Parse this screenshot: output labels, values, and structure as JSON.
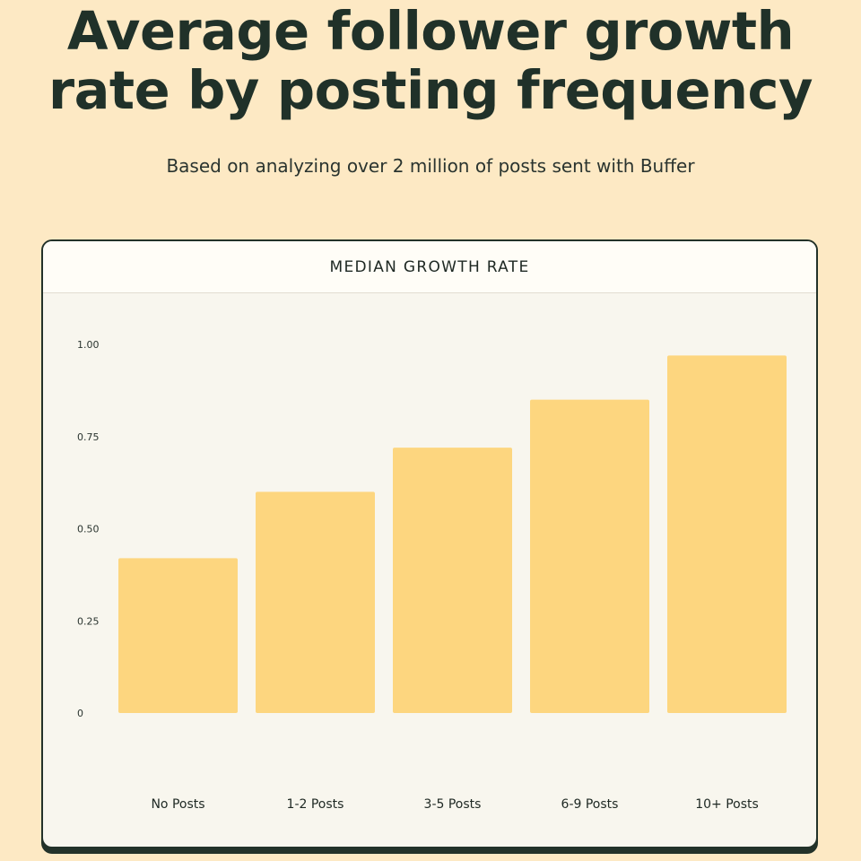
{
  "header": {
    "title_line1": "Average follower growth",
    "title_line2": "rate by posting frequency",
    "subtitle": "Based on analyzing over 2 million of posts sent with Buffer"
  },
  "chart_card": {
    "title": "MEDIAN GROWTH RATE"
  },
  "chart_data": {
    "type": "bar",
    "title": "MEDIAN GROWTH RATE",
    "categories": [
      "No Posts",
      "1-2 Posts",
      "3-5 Posts",
      "6-9 Posts",
      "10+ Posts"
    ],
    "values": [
      0.42,
      0.6,
      0.72,
      0.85,
      0.97
    ],
    "ylim": [
      0,
      1
    ],
    "yticks": [
      0,
      0.25,
      0.5,
      0.75,
      1
    ],
    "ytick_labels": [
      "0",
      "0.25",
      "0.50",
      "0.75",
      "1.00"
    ],
    "xlabel": "",
    "ylabel": "",
    "grid": false,
    "legend": "none"
  },
  "colors": {
    "page_background": "#fde9c4",
    "card_background": "#f8f6ee",
    "bar": "#fdd67f",
    "text_dark": "#203129"
  }
}
